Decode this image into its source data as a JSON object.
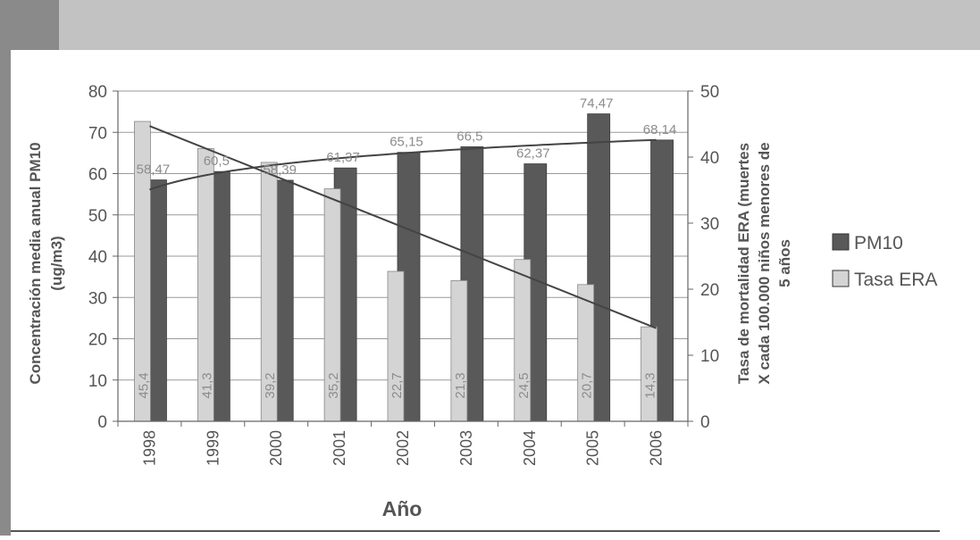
{
  "colors": {
    "header_band": "#c2c2c2",
    "left_block": "#8a8a8a",
    "pm10_bar": "#595959",
    "tasa_bar": "#d4d4d4",
    "trend_line": "#444444",
    "label_gray": "#8c8c8c"
  },
  "legend": {
    "items": [
      {
        "name": "PM10"
      },
      {
        "name": "Tasa ERA"
      }
    ]
  },
  "chart_data": {
    "type": "bar",
    "categories": [
      "1998",
      "1999",
      "2000",
      "2001",
      "2002",
      "2003",
      "2004",
      "2005",
      "2006"
    ],
    "series": [
      {
        "name": "PM10",
        "axis": "left",
        "values": [
          58.47,
          60.5,
          58.39,
          61.37,
          65.15,
          66.5,
          62.37,
          74.47,
          68.14
        ],
        "labels": [
          "58,47",
          "60,5",
          "58,39",
          "61,37",
          "65,15",
          "66,5",
          "62,37",
          "74,47",
          "68,14"
        ]
      },
      {
        "name": "Tasa ERA",
        "axis": "right",
        "values": [
          45.4,
          41.3,
          39.2,
          35.2,
          22.7,
          21.3,
          24.5,
          20.7,
          14.3
        ],
        "labels": [
          "45,4",
          "41,3",
          "39,2",
          "35,2",
          "22,7",
          "21,3",
          "24,5",
          "20,7",
          "14,3"
        ]
      }
    ],
    "trend_lines": [
      {
        "of": "PM10",
        "kind": "logarithmic"
      },
      {
        "of": "Tasa ERA",
        "kind": "linear"
      }
    ],
    "xlabel": "Año",
    "ylabel_left": "Concentración media anual PM10 (ug/m3)",
    "ylabel_right": "Tasa de mortalidad ERA (muertes X cada 100.000 niños menores de 5 años",
    "ylim_left": [
      0,
      80
    ],
    "ylim_right": [
      0,
      50
    ],
    "yticks_left": [
      "0",
      "10",
      "20",
      "30",
      "40",
      "50",
      "60",
      "70",
      "80"
    ],
    "yticks_right": [
      "0",
      "10",
      "20",
      "30",
      "40",
      "50"
    ],
    "grid": true,
    "legend_position": "right"
  }
}
